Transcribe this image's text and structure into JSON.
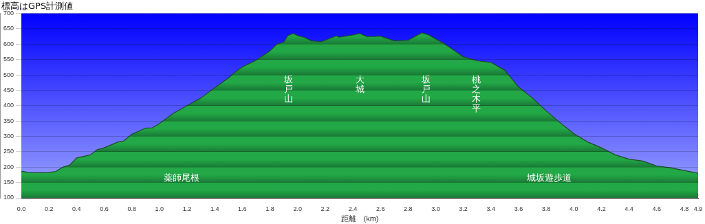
{
  "chart_data": {
    "type": "area",
    "title": "標高はGPS計測値",
    "xlabel": "距離　(km)",
    "x": [
      0,
      0.05,
      0.1,
      0.2,
      0.25,
      0.3,
      0.35,
      0.4,
      0.5,
      0.55,
      0.6,
      0.7,
      0.74,
      0.8,
      0.9,
      0.95,
      1.0,
      1.1,
      1.2,
      1.3,
      1.4,
      1.5,
      1.55,
      1.6,
      1.7,
      1.8,
      1.85,
      1.9,
      1.93,
      1.97,
      2.0,
      2.05,
      2.1,
      2.17,
      2.2,
      2.28,
      2.3,
      2.4,
      2.45,
      2.5,
      2.55,
      2.6,
      2.7,
      2.8,
      2.85,
      2.9,
      2.95,
      3.0,
      3.05,
      3.1,
      3.2,
      3.3,
      3.4,
      3.5,
      3.6,
      3.7,
      3.8,
      3.9,
      4.0,
      4.1,
      4.2,
      4.3,
      4.4,
      4.5,
      4.6,
      4.7,
      4.8,
      4.9
    ],
    "values": [
      187,
      183,
      182,
      183,
      186,
      200,
      207,
      230,
      240,
      257,
      263,
      282,
      285,
      307,
      327,
      328,
      342,
      375,
      400,
      425,
      458,
      490,
      510,
      526,
      548,
      578,
      600,
      607,
      628,
      635,
      628,
      622,
      611,
      608,
      613,
      627,
      623,
      630,
      635,
      625,
      625,
      626,
      611,
      613,
      625,
      637,
      630,
      617,
      605,
      590,
      559,
      546,
      541,
      515,
      461,
      425,
      383,
      345,
      309,
      282,
      263,
      240,
      226,
      220,
      204,
      198,
      189,
      180
    ],
    "color": "#22a846",
    "xlim": [
      0,
      4.9
    ],
    "xticks": [
      {
        "value": 0,
        "label": "0.0"
      },
      0.2,
      0.4,
      0.6,
      0.8,
      {
        "value": 1,
        "label": "1.0"
      },
      1.2,
      1.4,
      1.6,
      1.8,
      {
        "value": 2,
        "label": "2.0"
      },
      2.2,
      2.4,
      2.6,
      2.8,
      {
        "value": 3,
        "label": "3.0"
      },
      3.2,
      3.4,
      3.6,
      3.8,
      {
        "value": 4,
        "label": "4.0"
      },
      4.2,
      4.4,
      4.6,
      4.8,
      4.9
    ],
    "ylim": [
      100,
      700
    ],
    "yticks": [
      100,
      150,
      200,
      250,
      300,
      350,
      400,
      450,
      500,
      550,
      600,
      650,
      700
    ],
    "grid": "y",
    "annotations": [
      "坂戸山",
      "大城",
      "坂戸山",
      "桃之木平",
      "薬師尾根",
      "城坂遊歩道"
    ]
  }
}
